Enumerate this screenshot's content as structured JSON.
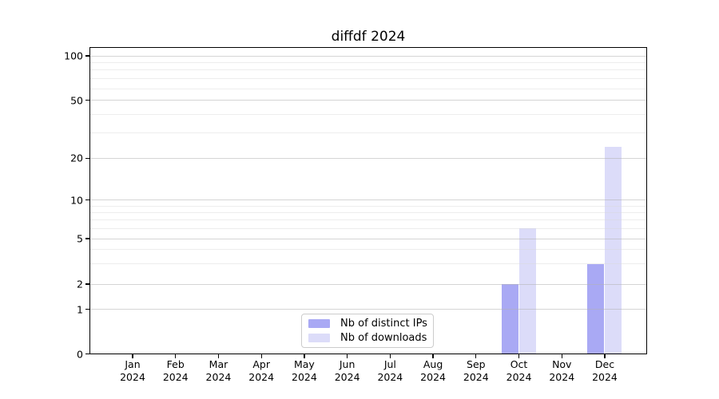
{
  "chart_data": {
    "type": "bar",
    "title": "diffdf 2024",
    "categories": [
      "Jan",
      "Feb",
      "Mar",
      "Apr",
      "May",
      "Jun",
      "Jul",
      "Aug",
      "Sep",
      "Oct",
      "Nov",
      "Dec"
    ],
    "year_label": "2024",
    "series": [
      {
        "name": "Nb of distinct IPs",
        "color": "#a9a9f4",
        "values": [
          0,
          0,
          0,
          0,
          0,
          0,
          0,
          0,
          0,
          2,
          0,
          3
        ]
      },
      {
        "name": "Nb of downloads",
        "color": "#dcdcf9",
        "values": [
          0,
          0,
          0,
          0,
          0,
          0,
          0,
          0,
          0,
          6,
          0,
          24
        ]
      }
    ],
    "xlabel": "",
    "ylabel": "",
    "y_axis": {
      "scale": "log-like (symlog)",
      "ticks": [
        0,
        1,
        2,
        5,
        10,
        20,
        50,
        100
      ],
      "minor_ticks": [
        3,
        4,
        6,
        7,
        8,
        9,
        30,
        40,
        60,
        70,
        80,
        90
      ],
      "range": [
        0,
        115
      ]
    },
    "grid": true,
    "legend_position": "lower center",
    "colors": {
      "distinct_ips": "#a9a9f4",
      "downloads": "#dcdcf9",
      "grid_major": "#d6d6d6",
      "grid_minor": "#ececec",
      "axis": "#000000",
      "background": "#ffffff"
    }
  }
}
